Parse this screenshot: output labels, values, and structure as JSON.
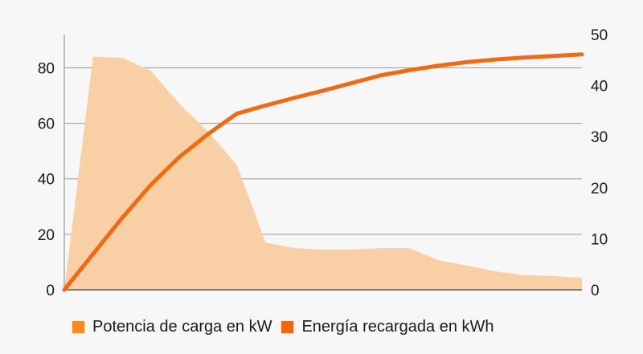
{
  "chart_data": {
    "type": "area+line",
    "title": "",
    "xlabel": "",
    "x": [
      0,
      1,
      2,
      3,
      4,
      5,
      6,
      7,
      8,
      9,
      10,
      11,
      12,
      13,
      14,
      15,
      16,
      17,
      18
    ],
    "left_axis": {
      "label": "",
      "ylim": [
        0,
        92
      ],
      "ticks": [
        "0",
        "20",
        "40",
        "60",
        "80"
      ],
      "tick_values": [
        0,
        20,
        40,
        60,
        80
      ]
    },
    "right_axis": {
      "label": "",
      "ylim": [
        0,
        50
      ],
      "ticks": [
        "0",
        "10",
        "20",
        "30",
        "40",
        "50"
      ],
      "tick_values": [
        0,
        10,
        20,
        30,
        40,
        50
      ]
    },
    "grid": true,
    "legend_position": "bottom",
    "series": [
      {
        "name": "Potencia de carga en kW",
        "type": "area",
        "axis": "left",
        "color": "#f9cfa5",
        "legend_color": "#ff8a1c",
        "values": [
          0,
          84,
          83.6,
          79,
          67,
          57,
          45,
          17,
          15,
          14.5,
          14.5,
          15,
          15,
          10.7,
          8.7,
          6.6,
          5.2,
          5,
          4.3
        ]
      },
      {
        "name": "Energía recargada en kWh",
        "type": "line",
        "axis": "right",
        "color": "#f26a10",
        "legend_color": "#f5640f",
        "values": [
          0,
          7,
          14,
          20.5,
          26,
          30.5,
          34.5,
          36.1,
          37.6,
          39,
          40.5,
          42,
          43,
          43.9,
          44.6,
          45.1,
          45.5,
          45.8,
          46.1
        ]
      }
    ]
  }
}
